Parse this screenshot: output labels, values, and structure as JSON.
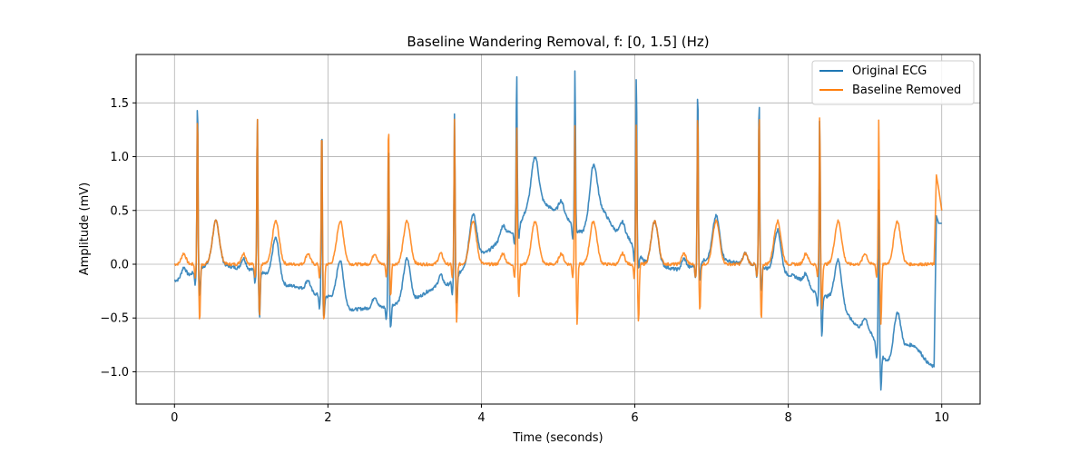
{
  "chart_data": {
    "type": "line",
    "title": "Baseline Wandering Removal, f: [0, 1.5] (Hz)",
    "xlabel": "Time (seconds)",
    "ylabel": "Amplitude (mV)",
    "xlim": [
      -0.5,
      10.5
    ],
    "ylim": [
      -1.3,
      1.95
    ],
    "xticks": [
      0,
      2,
      4,
      6,
      8,
      10
    ],
    "yticks": [
      -1.0,
      -0.5,
      0.0,
      0.5,
      1.0,
      1.5
    ],
    "xtick_labels": [
      "0",
      "2",
      "4",
      "6",
      "8",
      "10"
    ],
    "ytick_labels": [
      "−1.0",
      "−0.5",
      "0.0",
      "0.5",
      "1.0",
      "1.5"
    ],
    "grid": true,
    "legend_position": "upper-right",
    "colors": {
      "original": "#1f77b4",
      "removed": "#ff7f0e"
    },
    "beats": [
      {
        "t": 0.3,
        "orig_peak": 1.61,
        "rem_peak": 1.47,
        "orig_trough": -0.3,
        "rem_trough": -0.53
      },
      {
        "t": 1.08,
        "orig_peak": 1.42,
        "rem_peak": 1.42,
        "orig_trough": -0.5,
        "rem_trough": -0.48
      },
      {
        "t": 1.92,
        "orig_peak": 1.39,
        "rem_peak": 1.34,
        "orig_trough": -0.5,
        "rem_trough": -0.55
      },
      {
        "t": 2.79,
        "orig_peak": 1.23,
        "rem_peak": 1.38,
        "orig_trough": -0.59,
        "rem_trough": -0.3
      },
      {
        "t": 3.65,
        "orig_peak": 1.42,
        "rem_peak": 1.37,
        "orig_trough": -0.37,
        "rem_trough": -0.55
      },
      {
        "t": 4.46,
        "orig_peak": 1.82,
        "rem_peak": 1.34,
        "orig_trough": 0.25,
        "rem_trough": -0.3
      },
      {
        "t": 5.22,
        "orig_peak": 1.84,
        "rem_peak": 1.33,
        "orig_trough": 0.3,
        "rem_trough": -0.56
      },
      {
        "t": 6.02,
        "orig_peak": 1.82,
        "rem_peak": 1.38,
        "orig_trough": -0.05,
        "rem_trough": -0.55
      },
      {
        "t": 6.82,
        "orig_peak": 1.72,
        "rem_peak": 1.5,
        "orig_trough": -0.15,
        "rem_trough": -0.43
      },
      {
        "t": 7.62,
        "orig_peak": 1.62,
        "rem_peak": 1.5,
        "orig_trough": -0.25,
        "rem_trough": -0.52
      },
      {
        "t": 8.41,
        "orig_peak": 1.4,
        "rem_peak": 1.42,
        "orig_trough": -0.67,
        "rem_trough": -0.42
      },
      {
        "t": 9.18,
        "orig_peak": 0.72,
        "rem_peak": 1.37,
        "orig_trough": -1.16,
        "rem_trough": -0.55
      }
    ],
    "baseline_knots": {
      "x": [
        0.0,
        0.5,
        1.0,
        1.5,
        2.0,
        2.3,
        2.7,
        3.0,
        3.5,
        4.0,
        4.4,
        4.7,
        5.0,
        5.3,
        5.5,
        5.8,
        6.2,
        6.6,
        7.0,
        7.5,
        8.0,
        8.5,
        9.0,
        9.3,
        9.6,
        9.9
      ],
      "y": [
        -0.15,
        0.0,
        -0.05,
        -0.2,
        -0.3,
        -0.42,
        -0.4,
        -0.35,
        -0.2,
        0.1,
        0.3,
        0.6,
        0.5,
        0.3,
        0.55,
        0.3,
        0.0,
        -0.05,
        0.05,
        0.0,
        -0.1,
        -0.3,
        -0.6,
        -0.9,
        -0.75,
        -0.95
      ]
    },
    "series": [
      {
        "name": "Original ECG",
        "x": [
          0.0,
          0.05,
          0.1,
          0.15,
          0.2,
          0.26,
          0.3,
          0.33,
          0.38,
          0.45,
          0.52,
          0.6,
          0.7,
          0.8,
          0.9,
          0.95,
          1.0,
          1.04,
          1.08,
          1.11,
          1.15,
          1.25,
          1.35,
          1.4,
          1.5,
          1.6,
          1.7,
          1.8,
          1.85,
          1.88,
          1.92,
          1.95,
          2.0,
          2.1,
          2.15,
          2.2,
          2.3,
          2.4,
          2.5,
          2.6,
          2.7,
          2.75,
          2.79,
          2.82,
          2.9,
          3.0,
          3.1,
          3.2,
          3.3,
          3.45,
          3.55,
          3.6,
          3.65,
          3.68,
          3.75,
          3.85,
          3.95,
          4.05,
          4.15,
          4.3,
          4.4,
          4.46,
          4.49,
          4.55,
          4.65,
          4.7,
          4.8,
          4.9,
          5.0,
          5.1,
          5.18,
          5.22,
          5.25,
          5.3,
          5.4,
          5.5,
          5.6,
          5.7,
          5.8,
          5.9,
          5.98,
          6.02,
          6.05,
          6.15,
          6.3,
          6.5,
          6.6,
          6.7,
          6.78,
          6.82,
          6.85,
          6.9,
          7.0,
          7.2,
          7.3,
          7.5,
          7.58,
          7.62,
          7.65,
          7.75,
          7.85,
          7.95,
          8.1,
          8.2,
          8.3,
          8.37,
          8.41,
          8.44,
          8.5,
          8.6,
          8.75,
          8.9,
          9.0,
          9.1,
          9.15,
          9.18,
          9.2,
          9.25,
          9.35,
          9.45,
          9.55,
          9.65,
          9.75,
          9.85,
          9.88,
          9.9,
          9.93,
          9.96,
          10.0
        ],
        "y": [
          -0.15,
          -0.18,
          -0.1,
          0.0,
          -0.05,
          -0.1,
          1.61,
          -0.3,
          0.05,
          0.1,
          0.62,
          0.3,
          0.05,
          0.1,
          0.15,
          -0.05,
          -0.15,
          -0.1,
          1.42,
          -0.5,
          -0.1,
          0.25,
          0.25,
          -0.28,
          -0.2,
          -0.15,
          -0.15,
          -0.25,
          -0.3,
          -0.25,
          1.39,
          -0.5,
          -0.15,
          0.4,
          0.45,
          0.05,
          -0.35,
          -0.45,
          -0.35,
          -0.42,
          -0.35,
          -0.4,
          1.23,
          -0.59,
          -0.25,
          -0.2,
          -0.35,
          -0.35,
          -0.3,
          -0.15,
          0.1,
          -0.25,
          1.42,
          -0.37,
          0.15,
          0.6,
          0.15,
          0.15,
          0.25,
          0.3,
          0.35,
          1.82,
          0.25,
          0.8,
          1.17,
          1.0,
          0.65,
          0.6,
          0.55,
          0.5,
          0.35,
          1.84,
          0.3,
          0.5,
          1.05,
          0.5,
          0.2,
          0.45,
          0.2,
          0.15,
          0.2,
          1.82,
          -0.05,
          0.25,
          0.05,
          0.1,
          0.0,
          0.25,
          0.05,
          1.72,
          -0.15,
          0.15,
          0.2,
          0.05,
          0.1,
          0.0,
          -0.15,
          1.62,
          -0.25,
          0.1,
          0.45,
          0.0,
          -0.2,
          -0.15,
          -0.3,
          -0.4,
          1.4,
          -0.67,
          -0.3,
          -0.35,
          -0.25,
          -0.55,
          -0.6,
          -0.65,
          -0.75,
          0.72,
          -1.16,
          -0.8,
          -0.95,
          -0.45,
          -0.85,
          -0.9,
          -0.9,
          -1.05,
          -1.07,
          0.45,
          0.38,
          0.38,
          0.38
        ]
      },
      {
        "name": "Baseline Removed",
        "x": [
          0.0,
          0.05,
          0.1,
          0.15,
          0.2,
          0.26,
          0.3,
          0.33,
          0.38,
          0.45,
          0.52,
          0.6,
          0.7,
          0.8,
          0.9,
          0.95,
          1.0,
          1.04,
          1.08,
          1.11,
          1.15,
          1.25,
          1.35,
          1.4,
          1.5,
          1.6,
          1.7,
          1.8,
          1.85,
          1.88,
          1.92,
          1.95,
          2.0,
          2.1,
          2.15,
          2.2,
          2.3,
          2.4,
          2.5,
          2.6,
          2.7,
          2.75,
          2.79,
          2.82,
          2.9,
          3.0,
          3.1,
          3.2,
          3.3,
          3.45,
          3.55,
          3.6,
          3.65,
          3.68,
          3.75,
          3.85,
          3.95,
          4.05,
          4.15,
          4.3,
          4.4,
          4.46,
          4.49,
          4.55,
          4.65,
          4.7,
          4.8,
          4.9,
          5.0,
          5.1,
          5.18,
          5.22,
          5.25,
          5.3,
          5.4,
          5.5,
          5.6,
          5.7,
          5.8,
          5.9,
          5.98,
          6.02,
          6.05,
          6.15,
          6.3,
          6.5,
          6.6,
          6.7,
          6.78,
          6.82,
          6.85,
          6.9,
          7.0,
          7.2,
          7.3,
          7.5,
          7.58,
          7.62,
          7.65,
          7.75,
          7.85,
          7.95,
          8.1,
          8.2,
          8.3,
          8.37,
          8.41,
          8.44,
          8.5,
          8.6,
          8.75,
          8.9,
          9.0,
          9.1,
          9.15,
          9.18,
          9.2,
          9.25,
          9.35,
          9.45,
          9.55,
          9.65,
          9.75,
          9.85,
          9.88,
          9.9,
          9.93,
          9.96,
          10.0
        ],
        "y": [
          -0.05,
          -0.15,
          -0.2,
          -0.1,
          -0.18,
          -0.12,
          1.47,
          -0.53,
          -0.1,
          -0.05,
          0.45,
          0.1,
          -0.15,
          -0.1,
          -0.05,
          -0.15,
          -0.18,
          -0.1,
          1.42,
          -0.48,
          -0.05,
          0.3,
          0.28,
          -0.2,
          -0.1,
          0.0,
          0.05,
          0.15,
          0.2,
          -0.05,
          1.34,
          -0.55,
          -0.05,
          0.35,
          0.35,
          0.0,
          -0.05,
          0.1,
          0.15,
          0.0,
          0.05,
          -0.05,
          1.38,
          -0.3,
          -0.15,
          0.0,
          0.1,
          -0.2,
          -0.05,
          0.05,
          0.25,
          -0.3,
          1.37,
          -0.55,
          0.0,
          0.35,
          -0.05,
          0.0,
          0.1,
          0.0,
          0.1,
          1.34,
          -0.3,
          0.25,
          0.45,
          0.15,
          0.0,
          0.0,
          0.05,
          0.15,
          0.0,
          1.33,
          -0.56,
          -0.05,
          0.4,
          -0.05,
          -0.1,
          0.1,
          -0.05,
          -0.05,
          0.05,
          1.38,
          -0.55,
          0.1,
          0.0,
          0.05,
          -0.05,
          0.2,
          0.05,
          1.5,
          -0.43,
          0.1,
          0.15,
          0.0,
          0.05,
          0.0,
          -0.05,
          1.5,
          -0.52,
          0.1,
          0.4,
          -0.05,
          -0.05,
          0.05,
          0.0,
          -0.1,
          1.42,
          -0.42,
          0.05,
          -0.05,
          0.1,
          -0.05,
          0.0,
          0.05,
          -0.2,
          1.37,
          -0.55,
          0.0,
          -0.05,
          0.28,
          0.1,
          -0.05,
          0.05,
          -0.05,
          -0.3,
          -0.58,
          0.83,
          0.7,
          0.5
        ]
      }
    ]
  }
}
